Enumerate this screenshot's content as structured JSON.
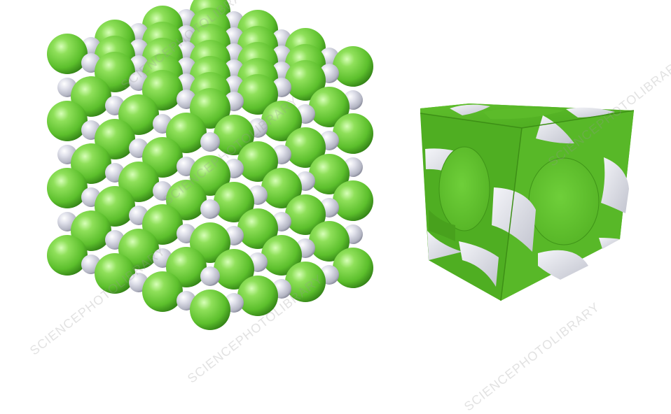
{
  "watermark": "SCIENCEPHOTOLIBRARY",
  "colors": {
    "background": "#ffffff",
    "chloride": "#6cc83a",
    "chloride_dark": "#3f8f1f",
    "chloride_light": "#b6ef8c",
    "sodium": "#c9cbd6",
    "sodium_dark": "#8d8f9c",
    "sodium_light": "#f3f4fa",
    "cell_face": "#63c232",
    "cell_face_dark": "#4aa51f"
  },
  "icons": {
    "left": "crystal-lattice-space-filling-model",
    "right": "unit-cell-model"
  }
}
